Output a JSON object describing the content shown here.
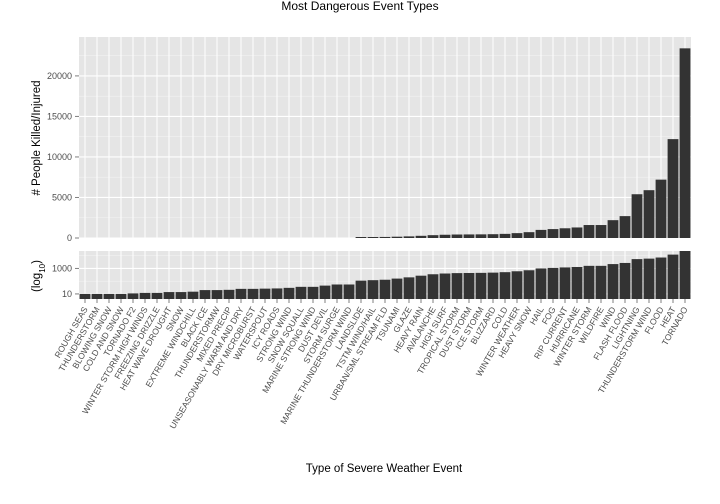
{
  "chart_data": {
    "type": "bar",
    "title": "Most Dangerous Event Types",
    "xlabel": "Type of Severe Weather Event",
    "categories": [
      "ROUGH SEAS",
      "THUNDERSTORM",
      "BLOWING SNOW",
      "COLD AND SNOW",
      "TORNADO F2",
      "WINTER STORM HIGH WINDS",
      "FREEZING DRIZZLE",
      "HEAT WAVE DROUGHT",
      "SNOW",
      "EXTREME WINDCHILL",
      "BLACK ICE",
      "THUNDERSTORMW",
      "MIXED PRECIP",
      "UNSEASONABLY WARM AND DRY",
      "DRY MICROBURST",
      "WATERSPOUT",
      "ICY ROADS",
      "STRONG WIND",
      "SNOW SQUALL",
      "MARINE STRONG WIND",
      "DUST DEVIL",
      "STORM SURGE",
      "MARINE THUNDERSTORM WIND",
      "LANDSLIDE",
      "TSTM WIND/HAIL",
      "URBAN/SML STREAM FLD",
      "TSUNAMI",
      "GLAZE",
      "HEAVY RAIN",
      "AVALANCHE",
      "HIGH SURF",
      "TROPICAL STORM",
      "DUST STORM",
      "ICE STORM",
      "BLIZZARD",
      "COLD",
      "WINTER WEATHER",
      "HEAVY SNOW",
      "HAIL",
      "FOG",
      "RIP CURRENT",
      "HURRICANE",
      "WINTER STORM",
      "WILDFIRE",
      "WIND",
      "FLASH FLOOD",
      "LIGHTNING",
      "THUNDERSTORM WIND",
      "FLOOD",
      "HEAT",
      "TORNADO"
    ],
    "series": [
      {
        "values": [
          10,
          10,
          10,
          10,
          11,
          12,
          12,
          14,
          14,
          15,
          20,
          20,
          21,
          25,
          25,
          26,
          27,
          30,
          36,
          36,
          45,
          55,
          55,
          110,
          120,
          130,
          160,
          200,
          270,
          350,
          400,
          430,
          440,
          450,
          470,
          510,
          600,
          720,
          1000,
          1100,
          1200,
          1300,
          1600,
          1600,
          2200,
          2700,
          5400,
          5900,
          7200,
          12200,
          23400
        ]
      }
    ],
    "panels": [
      {
        "scale": "linear",
        "ylabel": "# People Killed/Injured",
        "ylim": [
          0,
          24800
        ],
        "yticks": [
          0,
          5000,
          10000,
          15000,
          20000
        ],
        "ytick_labels": [
          "0",
          "5000",
          "10000",
          "15000",
          "20000"
        ]
      },
      {
        "scale": "log10",
        "ylabel_main": "(log",
        "ylabel_sub": "10",
        "ylabel_end": ")",
        "ylim": [
          4,
          23400
        ],
        "yticks": [
          10,
          1000
        ],
        "ytick_labels": [
          "10",
          "1000"
        ]
      }
    ],
    "grid": true,
    "colors": {
      "bar": "#333333",
      "panel_bg": "#e5e5e5",
      "grid_major": "#ffffff",
      "grid_minor": "#f2f2f2"
    }
  }
}
